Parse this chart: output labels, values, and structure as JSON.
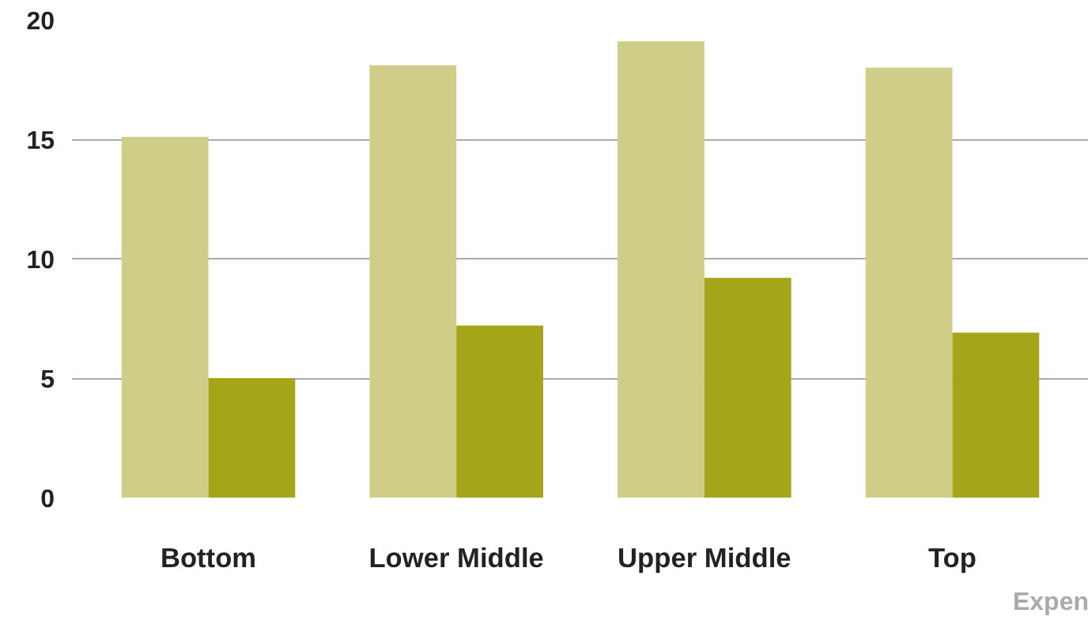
{
  "chart_data": {
    "type": "bar",
    "categories": [
      "Bottom",
      "Lower Middle",
      "Upper Middle",
      "Top"
    ],
    "series": [
      {
        "color": "#cfcd88",
        "values": [
          15.1,
          18.1,
          19.1,
          18.0
        ]
      },
      {
        "color": "#a5a51a",
        "values": [
          5.0,
          7.2,
          9.2,
          6.9
        ]
      }
    ],
    "ylim": [
      0,
      20
    ],
    "yticks": [
      0,
      5,
      10,
      15,
      20
    ],
    "grid": "y",
    "annotations": [
      "Expen"
    ]
  }
}
